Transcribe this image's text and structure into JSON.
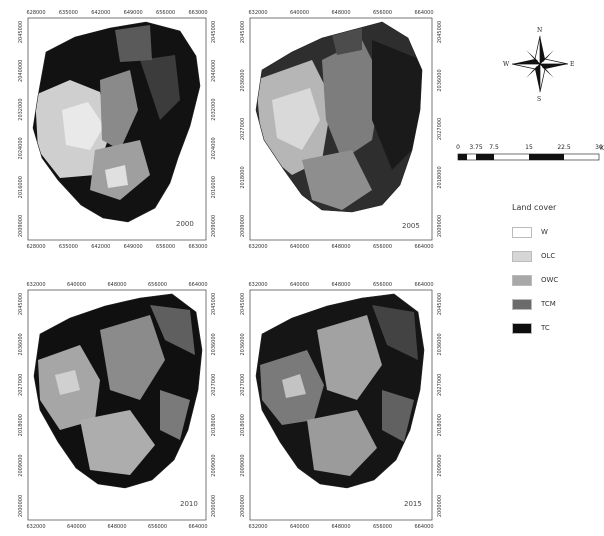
{
  "maps": [
    {
      "year": "2000",
      "top_ticks": [
        "628000",
        "635000",
        "642000",
        "649000",
        "656000",
        "663000"
      ],
      "bottom_ticks": [
        "628000",
        "635000",
        "642000",
        "649000",
        "656000",
        "663000"
      ],
      "left_ticks": [
        "2045000",
        "2040000",
        "2032000",
        "2024000",
        "2016000",
        "2009000"
      ],
      "right_ticks": [
        "2045000",
        "2040000",
        "2032000",
        "2024000",
        "2016000",
        "2009000"
      ]
    },
    {
      "year": "2005",
      "top_ticks": [
        "632000",
        "640000",
        "648000",
        "656000",
        "664000"
      ],
      "bottom_ticks": [
        "632000",
        "640000",
        "648000",
        "656000",
        "664000"
      ],
      "left_ticks": [
        "2045000",
        "2036000",
        "2027000",
        "2018000",
        "2009000"
      ],
      "right_ticks": [
        "2045000",
        "2036000",
        "2027000",
        "2018000",
        "2009000"
      ]
    },
    {
      "year": "2010",
      "top_ticks": [
        "632000",
        "640000",
        "648000",
        "656000",
        "664000"
      ],
      "bottom_ticks": [
        "632000",
        "640000",
        "648000",
        "656000",
        "664000"
      ],
      "left_ticks": [
        "2045000",
        "2036000",
        "2027000",
        "2018000",
        "2009000",
        "2000000"
      ],
      "right_ticks": [
        "2045000",
        "2036000",
        "2027000",
        "2018000",
        "2009000",
        "2000000"
      ]
    },
    {
      "year": "2015",
      "top_ticks": [
        "632000",
        "640000",
        "648000",
        "656000",
        "664000"
      ],
      "bottom_ticks": [
        "632000",
        "640000",
        "648000",
        "656000",
        "664000"
      ],
      "left_ticks": [
        "2045000",
        "2036000",
        "2027000",
        "2018000",
        "2009000",
        "2000000"
      ],
      "right_ticks": [
        "2045000",
        "2036000",
        "2027000",
        "2018000",
        "2009000",
        "2000000"
      ]
    }
  ],
  "north_arrow": {
    "n": "N",
    "s": "S",
    "e": "E",
    "w": "W"
  },
  "scale_bar": {
    "labels": [
      "0",
      "3.75",
      "7.5",
      "15",
      "22.5",
      "30"
    ],
    "unit": "K"
  },
  "legend": {
    "title": "Land cover",
    "items": [
      {
        "label": "W",
        "color": "#ffffff"
      },
      {
        "label": "OLC",
        "color": "#d6d6d6"
      },
      {
        "label": "OWC",
        "color": "#a8a8a8"
      },
      {
        "label": "TCM",
        "color": "#6b6b6b"
      },
      {
        "label": "TC",
        "color": "#0e0e0e"
      }
    ]
  }
}
